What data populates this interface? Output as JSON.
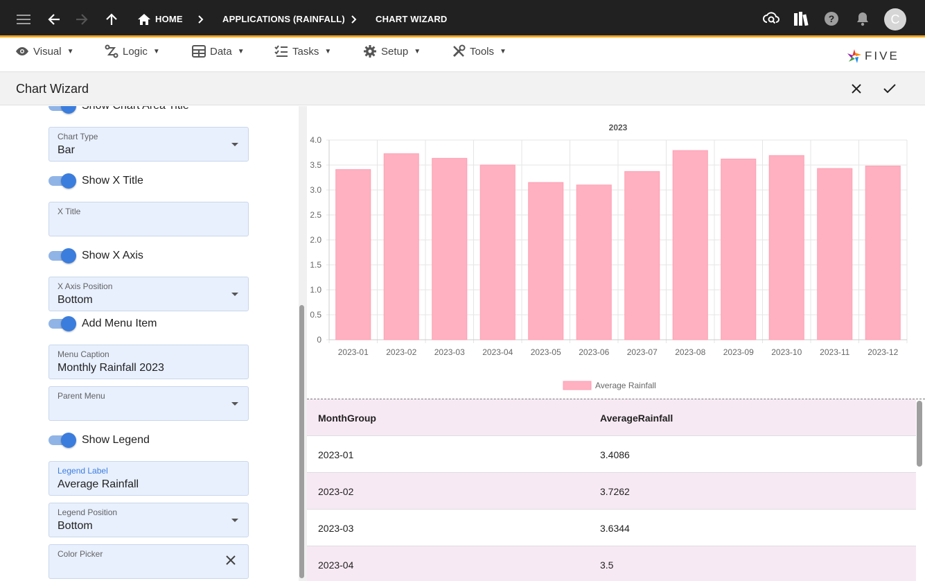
{
  "topbar": {
    "breadcrumbs": [
      "HOME",
      "APPLICATIONS (RAINFALL)",
      "CHART WIZARD"
    ],
    "avatar_initial": "C",
    "icons": [
      "menu-icon",
      "back-icon",
      "forward-icon",
      "up-icon",
      "home-icon",
      "cloud-search-icon",
      "library-icon",
      "help-icon",
      "bell-icon"
    ]
  },
  "menubar": {
    "items": [
      {
        "label": "Visual",
        "icon": "eye-icon"
      },
      {
        "label": "Logic",
        "icon": "flow-icon"
      },
      {
        "label": "Data",
        "icon": "table-icon"
      },
      {
        "label": "Tasks",
        "icon": "checklist-icon"
      },
      {
        "label": "Setup",
        "icon": "gear-icon"
      },
      {
        "label": "Tools",
        "icon": "tools-icon"
      }
    ],
    "logo_text": "FIVE"
  },
  "titlebar": {
    "title": "Chart Wizard"
  },
  "form": {
    "show_chart_area_title": "Show Chart Area Title",
    "chart_type": {
      "label": "Chart Type",
      "value": "Bar"
    },
    "show_x_title": "Show X Title",
    "x_title": {
      "label": "X Title",
      "value": ""
    },
    "show_x_axis": "Show X Axis",
    "x_axis_position": {
      "label": "X Axis Position",
      "value": "Bottom"
    },
    "add_menu_item": "Add Menu Item",
    "menu_caption": {
      "label": "Menu Caption",
      "value": "Monthly Rainfall 2023"
    },
    "parent_menu": {
      "label": "Parent Menu",
      "value": ""
    },
    "show_legend": "Show Legend",
    "legend_label": {
      "label": "Legend Label",
      "value": "Average Rainfall"
    },
    "legend_position": {
      "label": "Legend Position",
      "value": "Bottom"
    },
    "color_picker": {
      "label": "Color Picker",
      "value": ""
    }
  },
  "chart_data": {
    "type": "bar",
    "title": "2023",
    "categories": [
      "2023-01",
      "2023-02",
      "2023-03",
      "2023-04",
      "2023-05",
      "2023-06",
      "2023-07",
      "2023-08",
      "2023-09",
      "2023-10",
      "2023-11",
      "2023-12"
    ],
    "series": [
      {
        "name": "Average Rainfall",
        "values": [
          3.4086,
          3.7262,
          3.6344,
          3.5,
          3.15,
          3.1,
          3.37,
          3.79,
          3.62,
          3.69,
          3.43,
          3.48
        ],
        "color": "#ffb1c1"
      }
    ],
    "ylim": [
      0,
      4.0
    ],
    "yticks": [
      "0",
      "0.5",
      "1.0",
      "1.5",
      "2.0",
      "2.5",
      "3.0",
      "3.5",
      "4.0"
    ],
    "grid": true,
    "legend": "bottom"
  },
  "table": {
    "headers": [
      "MonthGroup",
      "AverageRainfall"
    ],
    "rows": [
      [
        "2023-01",
        "3.4086"
      ],
      [
        "2023-02",
        "3.7262"
      ],
      [
        "2023-03",
        "3.6344"
      ],
      [
        "2023-04",
        "3.5"
      ]
    ]
  }
}
